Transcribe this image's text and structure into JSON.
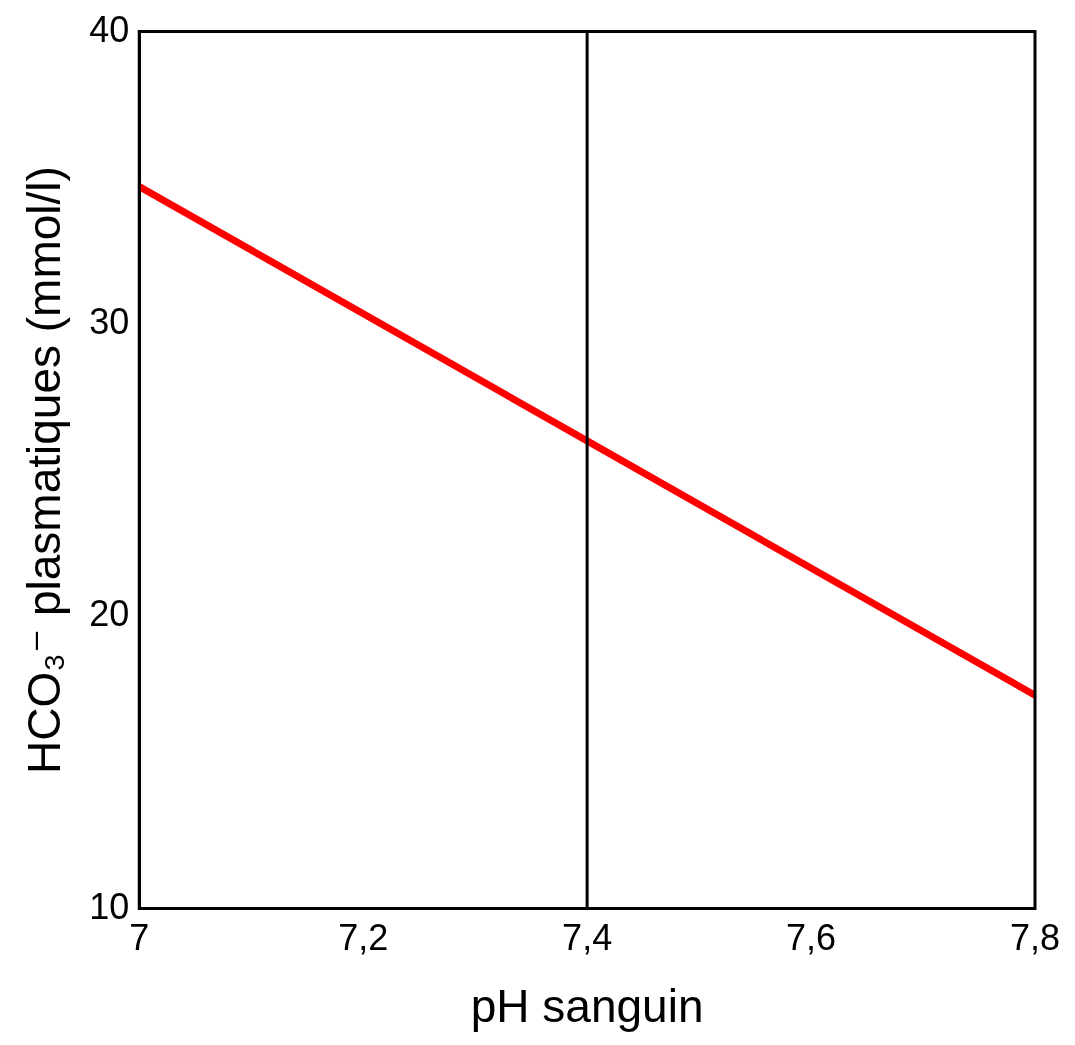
{
  "chart_data": {
    "type": "line",
    "xlabel": "pH sanguin",
    "ylabel": "HCO₃⁻ plasmatiques (mmol/l)",
    "x": [
      7,
      7.4,
      7.8
    ],
    "series": [
      {
        "color": "#ff0000",
        "values": [
          34.7,
          26,
          17.3
        ]
      }
    ],
    "xlim": [
      7,
      7.8
    ],
    "xticks": [
      7,
      {
        "value": 7.2,
        "label": "7,2"
      },
      {
        "value": 7.4,
        "label": "7,4"
      },
      {
        "value": 7.6,
        "label": "7,6"
      },
      {
        "value": 7.8,
        "label": "7,8"
      }
    ],
    "ylim": [
      10,
      40
    ],
    "yticks": [
      10,
      20,
      30,
      40
    ],
    "ref_lines": [
      {
        "axis": "x",
        "value": 7.4,
        "color": "#000000"
      }
    ],
    "grid": false,
    "legend": false
  }
}
